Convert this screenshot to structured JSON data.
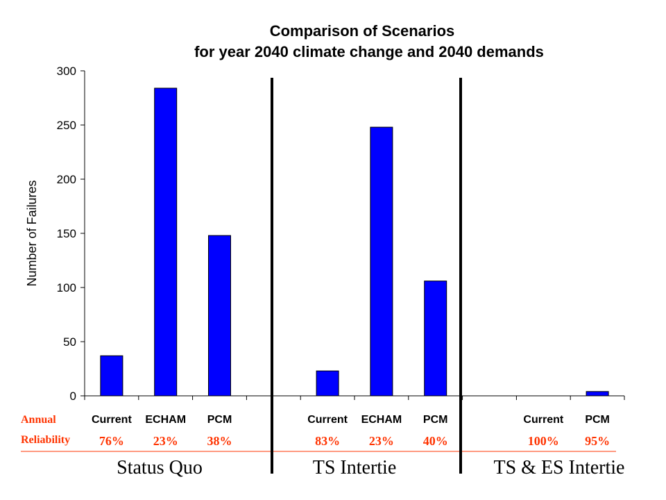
{
  "chart_data": {
    "type": "bar",
    "title": "Comparison of Scenarios",
    "subtitle": "for year 2040 climate change and 2040 demands",
    "ylabel": "Number of Failures",
    "xlabel": "",
    "ylim": [
      0,
      300
    ],
    "yticks": [
      "0",
      "50",
      "100",
      "150",
      "200",
      "250",
      "300"
    ],
    "grid": false,
    "bar_color": "#0000ff",
    "categories": [
      "Current",
      "ECHAM",
      "PCM",
      "",
      "Current",
      "ECHAM",
      "PCM",
      "",
      "Current",
      "PCM"
    ],
    "values": [
      37,
      284,
      148,
      null,
      23,
      248,
      106,
      null,
      0,
      4
    ],
    "reliability_label_line1": "Annual",
    "reliability_label_line2": "Reliability",
    "reliability_color": "#ff3300",
    "reliability": [
      "76%",
      "23%",
      "38%",
      "",
      "83%",
      "23%",
      "40%",
      "",
      "100%",
      "95%"
    ],
    "groups": [
      "Status Quo",
      "TS Intertie",
      "TS & ES Intertie"
    ]
  }
}
